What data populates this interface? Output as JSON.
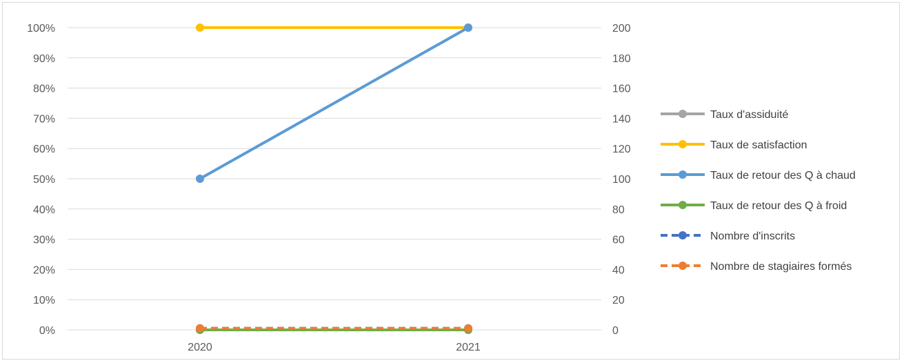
{
  "chart_data": {
    "type": "line",
    "categories": [
      "2020",
      "2021"
    ],
    "y_left": {
      "ticks": [
        "0%",
        "10%",
        "20%",
        "30%",
        "40%",
        "50%",
        "60%",
        "70%",
        "80%",
        "90%",
        "100%"
      ],
      "range": [
        0,
        1
      ]
    },
    "y_right": {
      "ticks": [
        "0",
        "20",
        "40",
        "60",
        "80",
        "100",
        "120",
        "140",
        "160",
        "180",
        "200"
      ],
      "range": [
        0,
        200
      ]
    },
    "grid": true,
    "legend_position": "right",
    "series": [
      {
        "name": "Taux d'assiduité",
        "axis": "left",
        "values": [
          0,
          0
        ],
        "color": "#a5a5a5",
        "dashed": false
      },
      {
        "name": "Taux de satisfaction",
        "axis": "left",
        "values": [
          1,
          1
        ],
        "color": "#ffc000",
        "dashed": false
      },
      {
        "name": "Taux de retour des Q à chaud",
        "axis": "left",
        "values": [
          0.5,
          1
        ],
        "color": "#5b9bd5",
        "dashed": false
      },
      {
        "name": "Taux de retour des Q à froid",
        "axis": "left",
        "values": [
          0,
          0
        ],
        "color": "#70ad47",
        "dashed": false
      },
      {
        "name": "Nombre d'inscrits",
        "axis": "right",
        "values": [
          1,
          1
        ],
        "color": "#4472c4",
        "dashed": true
      },
      {
        "name": "Nombre de stagiaires formés",
        "axis": "right",
        "values": [
          1,
          1
        ],
        "color": "#ed7d31",
        "dashed": true
      }
    ]
  }
}
